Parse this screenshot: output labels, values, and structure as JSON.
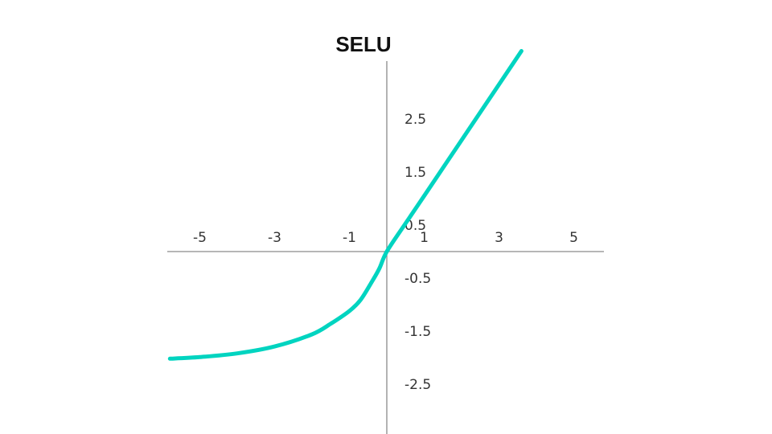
{
  "chart_data": {
    "type": "line",
    "title": "SELU",
    "xlabel": "",
    "ylabel": "",
    "xlim": [
      -5.9,
      5.9
    ],
    "ylim": [
      -3.4,
      3.4
    ],
    "x_ticks": [
      -5,
      -3,
      -1,
      1,
      3,
      5
    ],
    "y_ticks": [
      2.5,
      1.5,
      0.5,
      -0.5,
      -1.5,
      -2.5
    ],
    "grid": false,
    "colors": {
      "line": "#00d4c0",
      "axis": "#8a8a8a"
    },
    "series": [
      {
        "x": [
          -5.8,
          -5.0,
          -4.0,
          -3.0,
          -2.0,
          -1.5,
          -1.0,
          -0.7,
          -0.4,
          -0.2,
          0.0,
          0.5,
          1.0,
          2.0,
          3.0,
          3.6
        ],
        "y": [
          -2.02,
          -1.99,
          -1.92,
          -1.79,
          -1.56,
          -1.36,
          -1.12,
          -0.91,
          -0.57,
          -0.32,
          0.0,
          0.53,
          1.05,
          2.1,
          3.15,
          3.78
        ]
      }
    ]
  }
}
